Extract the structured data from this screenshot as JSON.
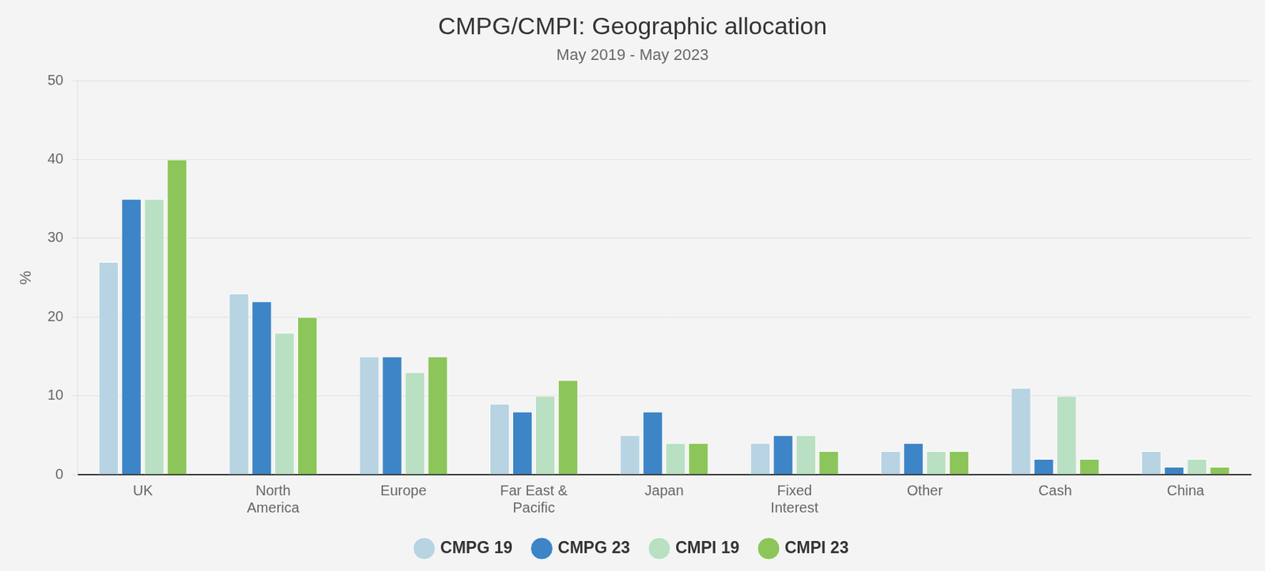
{
  "chart_data": {
    "type": "bar",
    "title": "CMPG/CMPI: Geographic allocation",
    "subtitle": "May 2019 - May 2023",
    "y_label": "%",
    "categories": [
      "UK",
      "North America",
      "Europe",
      "Far East & Pacific",
      "Japan",
      "Fixed Interest",
      "Other",
      "Cash",
      "China"
    ],
    "series": [
      {
        "name": "CMPG 19",
        "color": "#b8d4e3",
        "values": [
          27,
          23,
          15,
          9,
          5,
          4,
          3,
          11,
          3
        ]
      },
      {
        "name": "CMPG 23",
        "color": "#3d85c6",
        "values": [
          35,
          22,
          15,
          8,
          8,
          5,
          4,
          2,
          1
        ]
      },
      {
        "name": "CMPI 19",
        "color": "#b9e0c2",
        "values": [
          35,
          18,
          13,
          10,
          4,
          5,
          3,
          10,
          2
        ]
      },
      {
        "name": "CMPI 23",
        "color": "#8cc65a",
        "values": [
          40,
          20,
          15,
          12,
          4,
          3,
          3,
          2,
          1
        ]
      }
    ],
    "ylim": [
      0,
      50
    ],
    "yticks": [
      0,
      10,
      20,
      30,
      40,
      50
    ],
    "grid": true,
    "legend": "bottom"
  }
}
